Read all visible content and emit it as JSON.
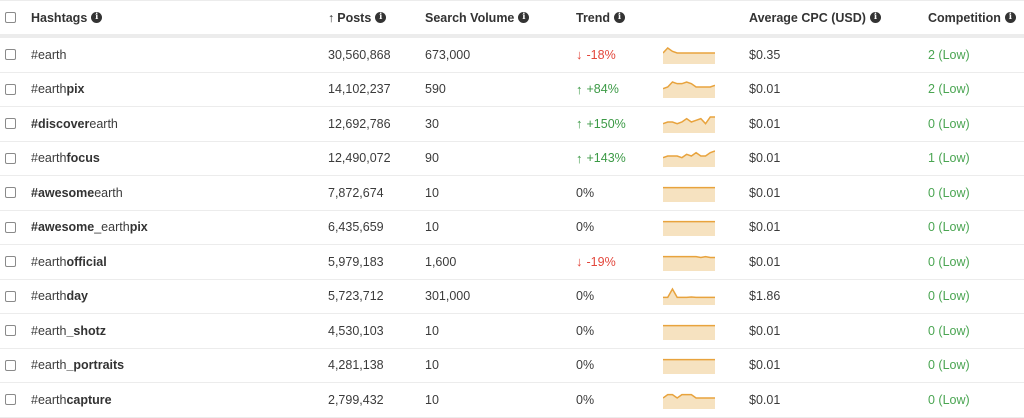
{
  "header": {
    "hashtags": "Hashtags",
    "posts": "Posts",
    "posts_sort_icon": "arrow-up",
    "search_volume": "Search Volume",
    "trend": "Trend",
    "avg_cpc": "Average CPC (USD)",
    "competition": "Competition",
    "info_glyph": "i"
  },
  "colors": {
    "up": "#3c9a46",
    "down": "#e3473c",
    "competition": "#4aa552",
    "sparkline_stroke": "#e8a33d",
    "sparkline_fill": "#f6e2c0"
  },
  "rows": [
    {
      "tag_parts": [
        {
          "t": "#earth",
          "b": false
        }
      ],
      "posts": "30,560,868",
      "volume": "673,000",
      "trend": "-18%",
      "dir": "down",
      "spark": [
        3,
        0,
        2,
        3,
        3,
        3,
        3,
        3,
        3,
        3,
        3,
        3
      ],
      "cpc": "$0.35",
      "competition": "2 (Low)"
    },
    {
      "tag_parts": [
        {
          "t": "#earth",
          "b": false
        },
        {
          "t": "pix",
          "b": true
        }
      ],
      "posts": "14,102,237",
      "volume": "590",
      "trend": "+84%",
      "dir": "up",
      "spark": [
        4,
        3,
        0,
        1,
        1,
        0,
        1,
        3,
        3,
        3,
        3,
        2
      ],
      "cpc": "$0.01",
      "competition": "2 (Low)"
    },
    {
      "tag_parts": [
        {
          "t": "#",
          "b": true
        },
        {
          "t": "discover",
          "b": true
        },
        {
          "t": "earth",
          "b": false
        }
      ],
      "posts": "12,692,786",
      "volume": "30",
      "trend": "+150%",
      "dir": "up",
      "spark": [
        4,
        3,
        3,
        4,
        3,
        1,
        3,
        2,
        1,
        4,
        0,
        0
      ],
      "cpc": "$0.01",
      "competition": "0 (Low)"
    },
    {
      "tag_parts": [
        {
          "t": "#earth",
          "b": false
        },
        {
          "t": "focus",
          "b": true
        }
      ],
      "posts": "12,490,072",
      "volume": "90",
      "trend": "+143%",
      "dir": "up",
      "spark": [
        4,
        3,
        3,
        3,
        4,
        2,
        3,
        1,
        3,
        3,
        1,
        0
      ],
      "cpc": "$0.01",
      "competition": "1 (Low)"
    },
    {
      "tag_parts": [
        {
          "t": "#awesome",
          "b": true
        },
        {
          "t": "earth",
          "b": false
        }
      ],
      "posts": "7,872,674",
      "volume": "10",
      "trend": "0%",
      "dir": "flat",
      "spark": [
        1,
        1,
        1,
        1,
        1,
        1,
        1,
        1,
        1,
        1,
        1,
        1
      ],
      "cpc": "$0.01",
      "competition": "0 (Low)"
    },
    {
      "tag_parts": [
        {
          "t": "#awesome",
          "b": true
        },
        {
          "t": "_earth",
          "b": false
        },
        {
          "t": "pix",
          "b": true
        }
      ],
      "posts": "6,435,659",
      "volume": "10",
      "trend": "0%",
      "dir": "flat",
      "spark": [
        1,
        1,
        1,
        1,
        1,
        1,
        1,
        1,
        1,
        1,
        1,
        1
      ],
      "cpc": "$0.01",
      "competition": "0 (Low)"
    },
    {
      "tag_parts": [
        {
          "t": "#earth",
          "b": false
        },
        {
          "t": "official",
          "b": true
        }
      ],
      "posts": "5,979,183",
      "volume": "1,600",
      "trend": "-19%",
      "dir": "down",
      "spark": [
        1,
        1,
        1,
        1,
        1,
        1,
        1,
        1,
        1.5,
        1,
        1.5,
        1.5
      ],
      "cpc": "$0.01",
      "competition": "0 (Low)"
    },
    {
      "tag_parts": [
        {
          "t": "#earth",
          "b": false
        },
        {
          "t": "day",
          "b": true
        }
      ],
      "posts": "5,723,712",
      "volume": "301,000",
      "trend": "0%",
      "dir": "flat",
      "spark": [
        5,
        5,
        0,
        5,
        5,
        5,
        4.8,
        5,
        5,
        5,
        5,
        5
      ],
      "cpc": "$1.86",
      "competition": "0 (Low)"
    },
    {
      "tag_parts": [
        {
          "t": "#earth",
          "b": false
        },
        {
          "t": "_shotz",
          "b": true
        }
      ],
      "posts": "4,530,103",
      "volume": "10",
      "trend": "0%",
      "dir": "flat",
      "spark": [
        1,
        1,
        1,
        1,
        1,
        1,
        1,
        1,
        1,
        1,
        1,
        1
      ],
      "cpc": "$0.01",
      "competition": "0 (Low)"
    },
    {
      "tag_parts": [
        {
          "t": "#earth",
          "b": false
        },
        {
          "t": "_portraits",
          "b": true
        }
      ],
      "posts": "4,281,138",
      "volume": "10",
      "trend": "0%",
      "dir": "flat",
      "spark": [
        1,
        1,
        1,
        1,
        1,
        1,
        1,
        1,
        1,
        1,
        1,
        1
      ],
      "cpc": "$0.01",
      "competition": "0 (Low)"
    },
    {
      "tag_parts": [
        {
          "t": "#earth",
          "b": false
        },
        {
          "t": "capture",
          "b": true
        }
      ],
      "posts": "2,799,432",
      "volume": "10",
      "trend": "0%",
      "dir": "flat",
      "spark": [
        3,
        1,
        1,
        3,
        1,
        1,
        1,
        3,
        3,
        3,
        3,
        3
      ],
      "cpc": "$0.01",
      "competition": "0 (Low)"
    }
  ]
}
